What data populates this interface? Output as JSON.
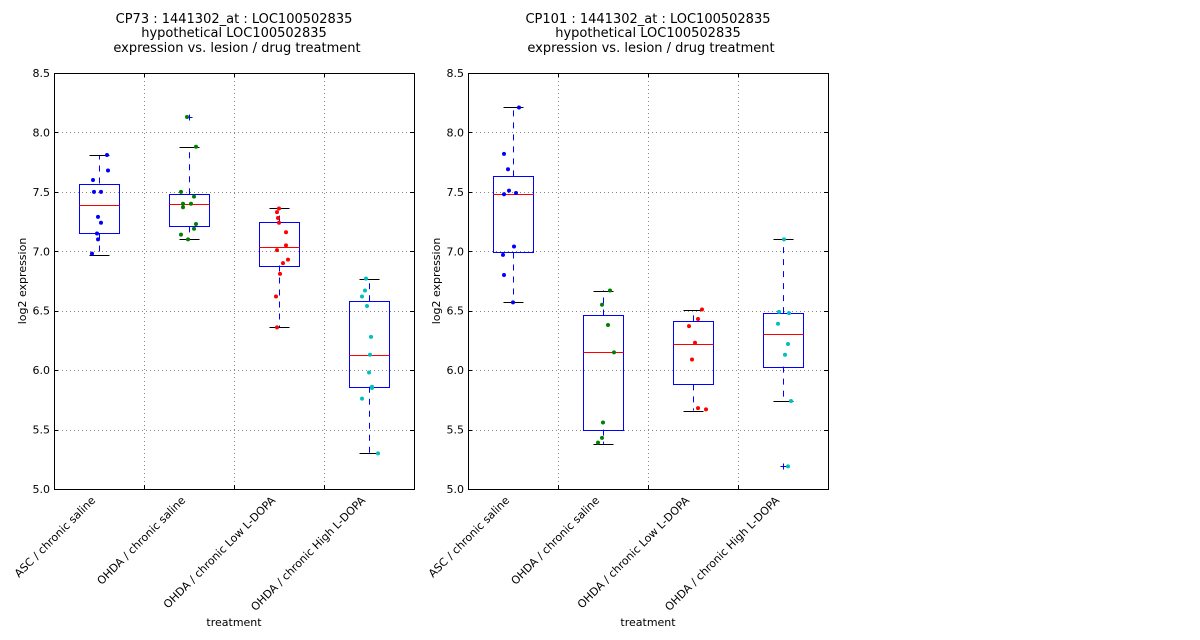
{
  "colors": {
    "box": "#0000ff",
    "median": "#ff0000",
    "whisker_cap": "#000000",
    "grid": "#888888",
    "point_groups": [
      "#0000ff",
      "#008000",
      "#ff0000",
      "#00bfbf"
    ],
    "flier": "#0000ff"
  },
  "chart_data": [
    {
      "type": "box",
      "title_lines": [
        "CP73 : 1441302_at : LOC100502835",
        "hypothetical LOC100502835",
        "expression vs. lesion / drug treatment"
      ],
      "xlabel": "treatment",
      "ylabel": "log2 expression",
      "ylim": [
        5.0,
        8.5
      ],
      "yticks": [
        "5.0",
        "5.5",
        "6.0",
        "6.5",
        "7.0",
        "7.5",
        "8.0",
        "8.5"
      ],
      "grid": true,
      "categories": [
        "ASC / chronic saline",
        "OHDA / chronic saline",
        "OHDA / chronic Low L-DOPA",
        "OHDA / chronic High L-DOPA"
      ],
      "boxes": [
        {
          "whislo": 6.97,
          "q1": 7.15,
          "med": 7.39,
          "q3": 7.57,
          "whishi": 7.81,
          "fliers": []
        },
        {
          "whislo": 7.1,
          "q1": 7.21,
          "med": 7.4,
          "q3": 7.48,
          "whishi": 7.88,
          "fliers": [
            8.13
          ]
        },
        {
          "whislo": 6.36,
          "q1": 6.88,
          "med": 7.04,
          "q3": 7.25,
          "whishi": 7.36,
          "fliers": []
        },
        {
          "whislo": 5.3,
          "q1": 5.86,
          "med": 6.13,
          "q3": 6.58,
          "whishi": 6.77,
          "fliers": []
        }
      ],
      "points": [
        [
          [
            0.4,
            7.81
          ],
          [
            0.45,
            7.68
          ],
          [
            -0.3,
            7.6
          ],
          [
            -0.25,
            7.5
          ],
          [
            0.1,
            7.5
          ],
          [
            -0.05,
            7.29
          ],
          [
            0.1,
            7.24
          ],
          [
            -0.1,
            7.15
          ],
          [
            -0.05,
            7.1
          ],
          [
            -0.35,
            6.98
          ]
        ],
        [
          [
            -0.1,
            8.13
          ],
          [
            0.35,
            7.88
          ],
          [
            -0.4,
            7.5
          ],
          [
            0.25,
            7.46
          ],
          [
            -0.3,
            7.4
          ],
          [
            0.1,
            7.4
          ],
          [
            -0.3,
            7.37
          ],
          [
            0.35,
            7.23
          ],
          [
            0.25,
            7.19
          ],
          [
            -0.4,
            7.14
          ],
          [
            -0.05,
            7.1
          ]
        ],
        [
          [
            0.0,
            7.36
          ],
          [
            -0.1,
            7.33
          ],
          [
            -0.05,
            7.28
          ],
          [
            0.0,
            7.24
          ],
          [
            0.35,
            7.16
          ],
          [
            0.35,
            7.05
          ],
          [
            -0.1,
            7.01
          ],
          [
            0.45,
            6.93
          ],
          [
            0.2,
            6.9
          ],
          [
            0.05,
            6.81
          ],
          [
            -0.15,
            6.62
          ],
          [
            -0.1,
            6.36
          ]
        ],
        [
          [
            -0.15,
            6.77
          ],
          [
            -0.2,
            6.67
          ],
          [
            -0.35,
            6.62
          ],
          [
            -0.1,
            6.54
          ],
          [
            0.1,
            6.28
          ],
          [
            0.05,
            6.13
          ],
          [
            0.0,
            5.98
          ],
          [
            0.15,
            5.86
          ],
          [
            0.15,
            5.85
          ],
          [
            -0.35,
            5.76
          ],
          [
            0.45,
            5.3
          ]
        ]
      ]
    },
    {
      "type": "box",
      "title_lines": [
        "CP101 : 1441302_at : LOC100502835",
        "hypothetical LOC100502835",
        "expression vs. lesion / drug treatment"
      ],
      "xlabel": "treatment",
      "ylabel": "log2 expression",
      "ylim": [
        5.0,
        8.5
      ],
      "yticks": [
        "5.0",
        "5.5",
        "6.0",
        "6.5",
        "7.0",
        "7.5",
        "8.0",
        "8.5"
      ],
      "grid": true,
      "categories": [
        "ASC / chronic saline",
        "OHDA / chronic saline",
        "OHDA / chronic Low L-DOPA",
        "OHDA / chronic High L-DOPA"
      ],
      "boxes": [
        {
          "whislo": 6.57,
          "q1": 6.99,
          "med": 7.48,
          "q3": 7.63,
          "whishi": 8.21,
          "fliers": []
        },
        {
          "whislo": 5.38,
          "q1": 5.5,
          "med": 6.15,
          "q3": 6.46,
          "whishi": 6.67,
          "fliers": []
        },
        {
          "whislo": 5.66,
          "q1": 5.88,
          "med": 6.22,
          "q3": 6.41,
          "whishi": 6.51,
          "fliers": []
        },
        {
          "whislo": 5.74,
          "q1": 6.03,
          "med": 6.3,
          "q3": 6.48,
          "whishi": 7.1,
          "fliers": [
            5.19
          ]
        }
      ],
      "points": [
        [
          [
            0.3,
            8.21
          ],
          [
            -0.45,
            7.82
          ],
          [
            -0.25,
            7.69
          ],
          [
            -0.2,
            7.51
          ],
          [
            0.15,
            7.49
          ],
          [
            -0.45,
            7.48
          ],
          [
            0.05,
            7.04
          ],
          [
            -0.5,
            6.97
          ],
          [
            -0.45,
            6.8
          ],
          [
            0.0,
            6.57
          ]
        ],
        [
          [
            0.35,
            6.67
          ],
          [
            -0.05,
            6.55
          ],
          [
            0.25,
            6.38
          ],
          [
            0.55,
            6.15
          ],
          [
            0.0,
            5.56
          ],
          [
            -0.05,
            5.43
          ],
          [
            -0.25,
            5.39
          ]
        ],
        [
          [
            0.45,
            6.51
          ],
          [
            0.25,
            6.43
          ],
          [
            -0.2,
            6.37
          ],
          [
            0.1,
            6.23
          ],
          [
            -0.05,
            6.09
          ],
          [
            0.25,
            5.68
          ],
          [
            0.65,
            5.67
          ]
        ],
        [
          [
            0.05,
            7.1
          ],
          [
            -0.2,
            6.49
          ],
          [
            0.3,
            6.48
          ],
          [
            -0.25,
            6.39
          ],
          [
            0.25,
            6.22
          ],
          [
            0.1,
            6.13
          ],
          [
            0.4,
            5.74
          ],
          [
            0.25,
            5.19
          ]
        ]
      ]
    }
  ]
}
